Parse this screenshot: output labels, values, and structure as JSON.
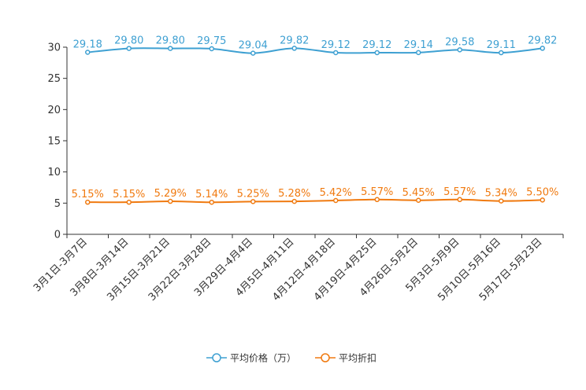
{
  "chart_data": {
    "type": "line",
    "title": "",
    "xlabel": "",
    "ylabel": "",
    "ylim": [
      0,
      30
    ],
    "yticks": [
      0,
      5,
      10,
      15,
      20,
      25,
      30
    ],
    "grid": false,
    "legend_position": "bottom",
    "categories": [
      "3月1日-3月7日",
      "3月8日-3月14日",
      "3月15日-3月21日",
      "3月22日-3月28日",
      "3月29日-4月4日",
      "4月5日-4月11日",
      "4月12日-4月18日",
      "4月19日-4月25日",
      "4月26日-5月2日",
      "5月3日-5月9日",
      "5月10日-5月16日",
      "5月17日-5月23日"
    ],
    "series": [
      {
        "name": "平均价格（万）",
        "color": "#3ea0d2",
        "values": [
          29.18,
          29.8,
          29.8,
          29.75,
          29.04,
          29.82,
          29.12,
          29.12,
          29.14,
          29.58,
          29.11,
          29.82
        ],
        "labels": [
          "29.18",
          "29.80",
          "29.80",
          "29.75",
          "29.04",
          "29.82",
          "29.12",
          "29.12",
          "29.14",
          "29.58",
          "29.11",
          "29.82"
        ]
      },
      {
        "name": "平均折扣",
        "color": "#f07a10",
        "values": [
          5.15,
          5.15,
          5.29,
          5.14,
          5.25,
          5.28,
          5.42,
          5.57,
          5.45,
          5.57,
          5.34,
          5.5
        ],
        "labels": [
          "5.15%",
          "5.15%",
          "5.29%",
          "5.14%",
          "5.25%",
          "5.28%",
          "5.42%",
          "5.57%",
          "5.45%",
          "5.57%",
          "5.34%",
          "5.50%"
        ]
      }
    ]
  }
}
